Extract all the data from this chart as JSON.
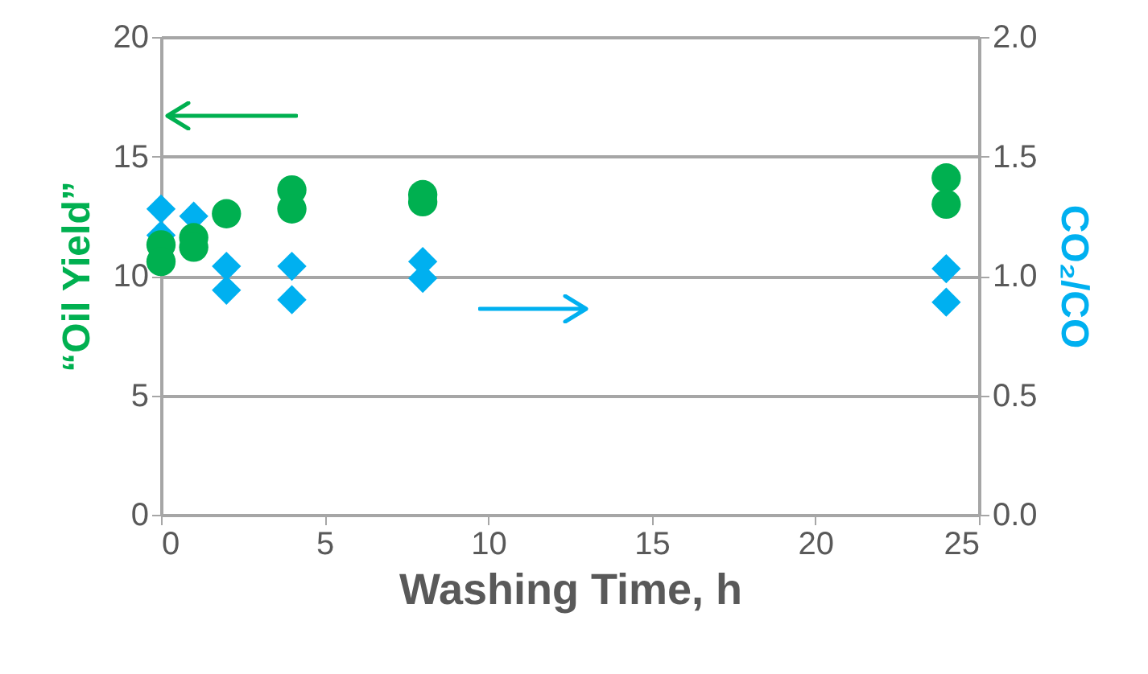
{
  "chart_data": {
    "type": "scatter",
    "xlabel": "Washing Time, h",
    "ylabel": "“Oil Yield”",
    "y2label": "CO₂/CO",
    "xlim": [
      0,
      25
    ],
    "xticks": [
      0,
      5,
      10,
      15,
      20,
      25
    ],
    "ylim": [
      0,
      20
    ],
    "yticks": [
      0,
      5,
      10,
      15,
      20
    ],
    "y2lim": [
      0,
      2
    ],
    "y2ticks": [
      {
        "value": 0,
        "label": "0.0"
      },
      {
        "value": 0.5,
        "label": "0.5"
      },
      {
        "value": 1,
        "label": "1.0"
      },
      {
        "value": 1.5,
        "label": "1.5"
      },
      {
        "value": 2,
        "label": "2.0"
      }
    ],
    "grid": "y",
    "series": [
      {
        "color": "#00b0f0",
        "marker": "diamond",
        "axis": "y2",
        "x": [
          0,
          0,
          1,
          2,
          2,
          4,
          4,
          8,
          8,
          24,
          24
        ],
        "values": [
          1.28,
          1.17,
          1.25,
          1.04,
          0.94,
          1.04,
          0.9,
          1.06,
          0.99,
          1.03,
          0.89
        ]
      },
      {
        "color": "#00b050",
        "marker": "circle",
        "x": [
          0,
          0,
          1,
          1,
          2,
          4,
          4,
          8,
          8,
          24,
          24
        ],
        "values": [
          11.3,
          10.6,
          11.6,
          11.2,
          12.6,
          13.6,
          12.8,
          13.4,
          13.1,
          14.1,
          13.0
        ]
      }
    ]
  }
}
